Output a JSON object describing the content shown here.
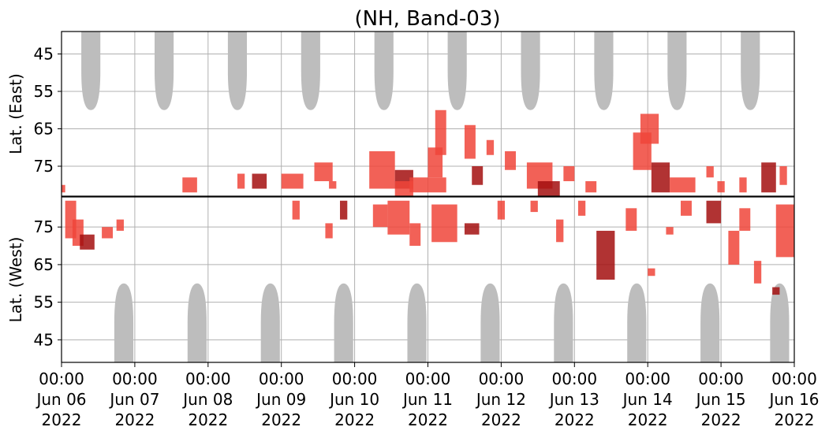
{
  "chart_data": {
    "type": "heatmap",
    "title": "(NH, Band-03)",
    "panels": [
      {
        "name": "east",
        "ylabel": "Lat. (East)",
        "yticks": [
          45,
          55,
          65,
          75
        ],
        "ylim": [
          39,
          83
        ]
      },
      {
        "name": "west",
        "ylabel": "Lat. (West)",
        "yticks": [
          75,
          65,
          55,
          45
        ],
        "ylim": [
          83,
          39
        ]
      }
    ],
    "xlim": [
      "2022-06-06 00:00",
      "2022-06-16 00:00"
    ],
    "xticks": [
      {
        "time": "00:00",
        "date": "Jun 06",
        "year": "2022"
      },
      {
        "time": "00:00",
        "date": "Jun 07",
        "year": "2022"
      },
      {
        "time": "00:00",
        "date": "Jun 08",
        "year": "2022"
      },
      {
        "time": "00:00",
        "date": "Jun 09",
        "year": "2022"
      },
      {
        "time": "00:00",
        "date": "Jun 10",
        "year": "2022"
      },
      {
        "time": "00:00",
        "date": "Jun 11",
        "year": "2022"
      },
      {
        "time": "00:00",
        "date": "Jun 12",
        "year": "2022"
      },
      {
        "time": "00:00",
        "date": "Jun 13",
        "year": "2022"
      },
      {
        "time": "00:00",
        "date": "Jun 14",
        "year": "2022"
      },
      {
        "time": "00:00",
        "date": "Jun 15",
        "year": "2022"
      },
      {
        "time": "00:00",
        "date": "Jun 16",
        "year": "2022"
      }
    ],
    "grid": true,
    "colors": {
      "daylight": "#bdbdbd",
      "detection": "#f0453a",
      "strong": "#a30f0f"
    },
    "daylight_regions": {
      "east": [
        [
          0.4,
          60
        ],
        [
          1.4,
          60
        ],
        [
          2.4,
          60
        ],
        [
          3.4,
          60
        ],
        [
          4.4,
          60
        ],
        [
          5.4,
          60
        ],
        [
          6.4,
          60
        ],
        [
          7.4,
          60
        ],
        [
          8.4,
          60
        ],
        [
          9.4,
          60
        ]
      ],
      "west": [
        [
          0.85,
          60
        ],
        [
          1.85,
          60
        ],
        [
          2.85,
          60
        ],
        [
          3.85,
          60
        ],
        [
          4.85,
          60
        ],
        [
          5.85,
          60
        ],
        [
          6.85,
          60
        ],
        [
          7.85,
          60
        ],
        [
          8.85,
          60
        ],
        [
          9.8,
          60
        ]
      ]
    },
    "detections": {
      "east": [
        [
          1.65,
          78,
          1.85,
          82
        ],
        [
          2.4,
          77,
          2.5,
          81
        ],
        [
          2.6,
          77,
          2.8,
          81
        ],
        [
          3.0,
          77,
          3.3,
          81
        ],
        [
          3.45,
          74,
          3.7,
          79
        ],
        [
          3.65,
          79,
          3.75,
          81
        ],
        [
          4.2,
          71,
          4.55,
          81
        ],
        [
          4.55,
          76,
          4.8,
          81
        ],
        [
          4.75,
          78,
          5.25,
          82
        ],
        [
          4.55,
          79,
          4.8,
          83
        ],
        [
          5.0,
          70,
          5.2,
          78
        ],
        [
          5.1,
          60,
          5.25,
          72
        ],
        [
          5.6,
          75,
          5.75,
          80
        ],
        [
          5.5,
          64,
          5.65,
          73
        ],
        [
          5.8,
          68,
          5.9,
          72
        ],
        [
          6.05,
          71,
          6.2,
          76
        ],
        [
          6.35,
          74,
          6.7,
          81
        ],
        [
          6.5,
          79,
          6.8,
          83
        ],
        [
          6.85,
          75,
          7.0,
          79
        ],
        [
          7.15,
          79,
          7.3,
          82
        ],
        [
          7.8,
          66,
          8.05,
          76
        ],
        [
          7.9,
          61,
          8.15,
          69
        ],
        [
          8.05,
          74,
          8.3,
          82
        ],
        [
          8.3,
          78,
          8.65,
          82
        ],
        [
          8.8,
          75,
          8.9,
          78
        ],
        [
          8.95,
          79,
          9.05,
          82
        ],
        [
          9.25,
          78,
          9.35,
          82
        ],
        [
          9.55,
          74,
          9.75,
          82
        ],
        [
          9.8,
          75,
          9.9,
          80
        ],
        [
          0.0,
          80,
          0.05,
          82
        ]
      ],
      "west": [
        [
          0.05,
          72,
          0.2,
          82
        ],
        [
          0.15,
          70,
          0.3,
          77
        ],
        [
          0.25,
          69,
          0.45,
          73
        ],
        [
          0.55,
          72,
          0.7,
          75
        ],
        [
          0.75,
          74,
          0.85,
          77
        ],
        [
          3.15,
          77,
          3.25,
          82
        ],
        [
          3.6,
          72,
          3.7,
          76
        ],
        [
          3.8,
          77,
          3.9,
          82
        ],
        [
          4.25,
          75,
          4.45,
          81
        ],
        [
          4.45,
          73,
          4.75,
          82
        ],
        [
          4.75,
          70,
          4.9,
          76
        ],
        [
          5.05,
          71,
          5.4,
          81
        ],
        [
          5.5,
          73,
          5.7,
          76
        ],
        [
          5.95,
          77,
          6.05,
          82
        ],
        [
          6.4,
          79,
          6.5,
          82
        ],
        [
          6.75,
          71,
          6.85,
          77
        ],
        [
          7.05,
          78,
          7.15,
          82
        ],
        [
          7.3,
          61,
          7.55,
          74
        ],
        [
          7.7,
          74,
          7.85,
          80
        ],
        [
          8.0,
          62,
          8.1,
          64
        ],
        [
          8.25,
          73,
          8.35,
          75
        ],
        [
          8.45,
          78,
          8.6,
          82
        ],
        [
          8.8,
          76,
          9.0,
          82
        ],
        [
          9.1,
          65,
          9.25,
          74
        ],
        [
          9.25,
          74,
          9.4,
          80
        ],
        [
          9.45,
          60,
          9.55,
          66
        ],
        [
          9.75,
          67,
          10.0,
          81
        ],
        [
          9.7,
          57,
          9.8,
          59
        ]
      ]
    }
  }
}
